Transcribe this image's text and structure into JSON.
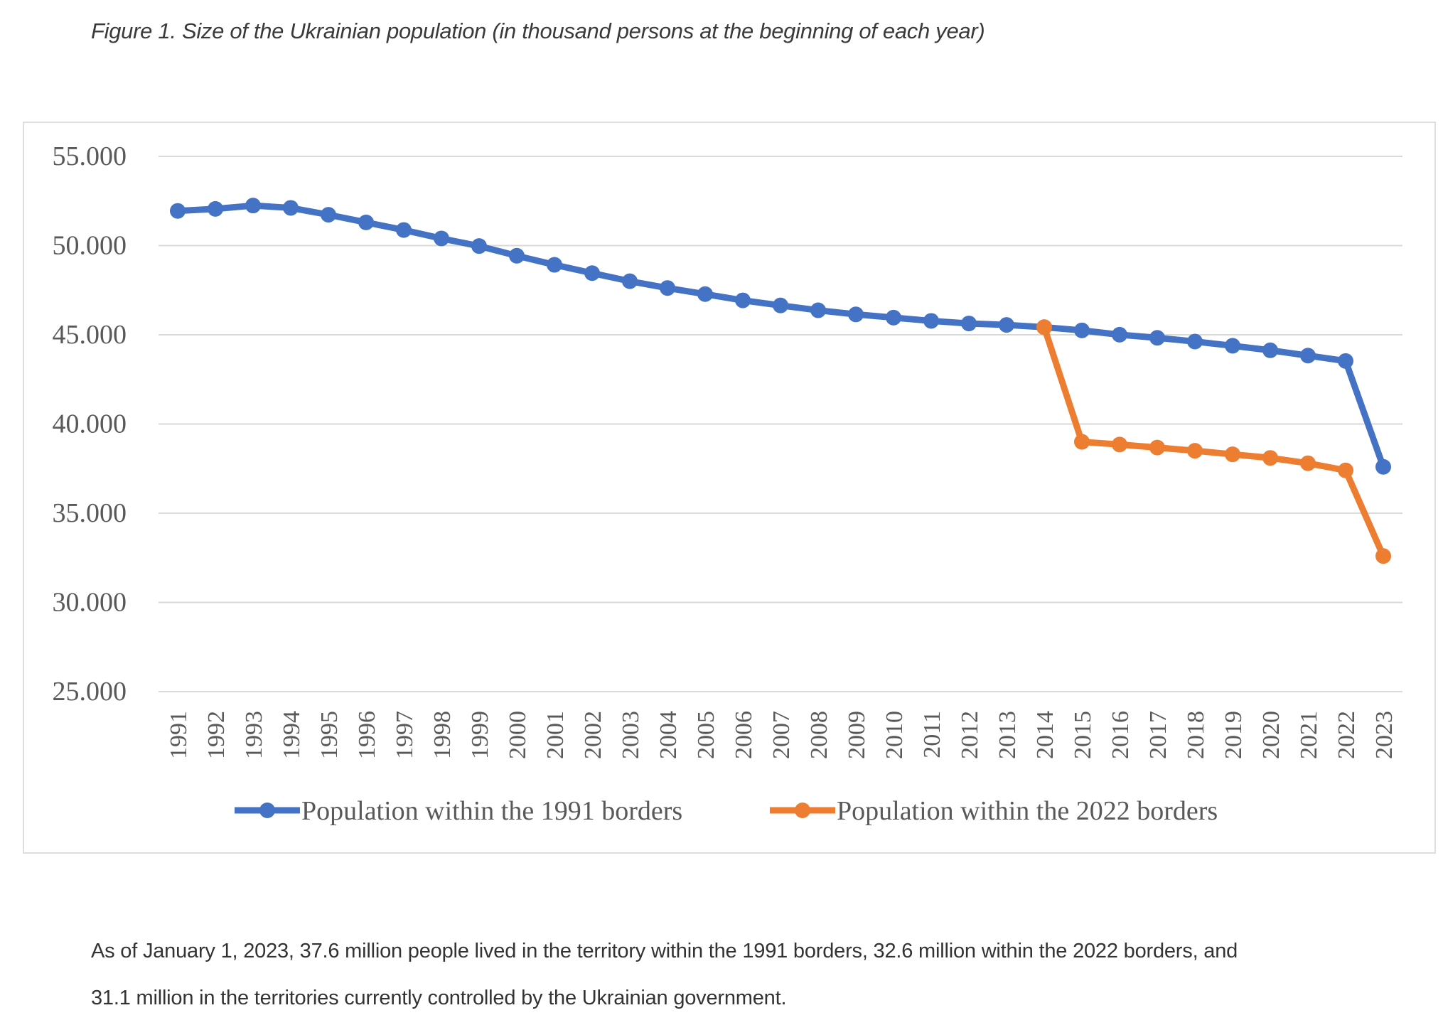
{
  "caption": "Figure 1. Size of the Ukrainian population (in thousand persons at the beginning of each year)",
  "paragraph": {
    "line1": "As of January 1, 2023, 37.6 million people lived in the territory within the 1991 borders, 32.6 million within the 2022 borders, and",
    "line2": "31.1 million in the territories currently controlled by the Ukrainian government."
  },
  "chart_data": {
    "type": "line",
    "title": "Size of the Ukrainian population (in thousand persons at the beginning of each year)",
    "xlabel": "",
    "ylabel": "",
    "ylim": [
      25000,
      55000
    ],
    "yticks": [
      25000,
      30000,
      35000,
      40000,
      45000,
      50000,
      55000
    ],
    "ytick_labels": [
      "25.000",
      "30.000",
      "35.000",
      "40.000",
      "45.000",
      "50.000",
      "55.000"
    ],
    "grid": true,
    "legend_position": "bottom",
    "categories": [
      "1991",
      "1992",
      "1993",
      "1994",
      "1995",
      "1996",
      "1997",
      "1998",
      "1999",
      "2000",
      "2001",
      "2002",
      "2003",
      "2004",
      "2005",
      "2006",
      "2007",
      "2008",
      "2009",
      "2010",
      "2011",
      "2012",
      "2013",
      "2014",
      "2015",
      "2016",
      "2017",
      "2018",
      "2019",
      "2020",
      "2021",
      "2022",
      "2023"
    ],
    "series": [
      {
        "name": "Population within the 1991 borders",
        "color": "#4472c4",
        "values": [
          51944,
          52057,
          52244,
          52114,
          51728,
          51300,
          50874,
          50400,
          49973,
          49430,
          48923,
          48457,
          48003,
          47622,
          47280,
          46929,
          46646,
          46373,
          46144,
          45963,
          45779,
          45634,
          45553,
          45426,
          45246,
          45004,
          44831,
          44622,
          44386,
          44132,
          43834,
          43531,
          37600
        ]
      },
      {
        "name": "Population within the 2022 borders",
        "color": "#ed7d31",
        "values": [
          null,
          null,
          null,
          null,
          null,
          null,
          null,
          null,
          null,
          null,
          null,
          null,
          null,
          null,
          null,
          null,
          null,
          null,
          null,
          null,
          null,
          null,
          null,
          45426,
          39000,
          38850,
          38680,
          38500,
          38300,
          38100,
          37800,
          37400,
          32600
        ]
      }
    ]
  }
}
